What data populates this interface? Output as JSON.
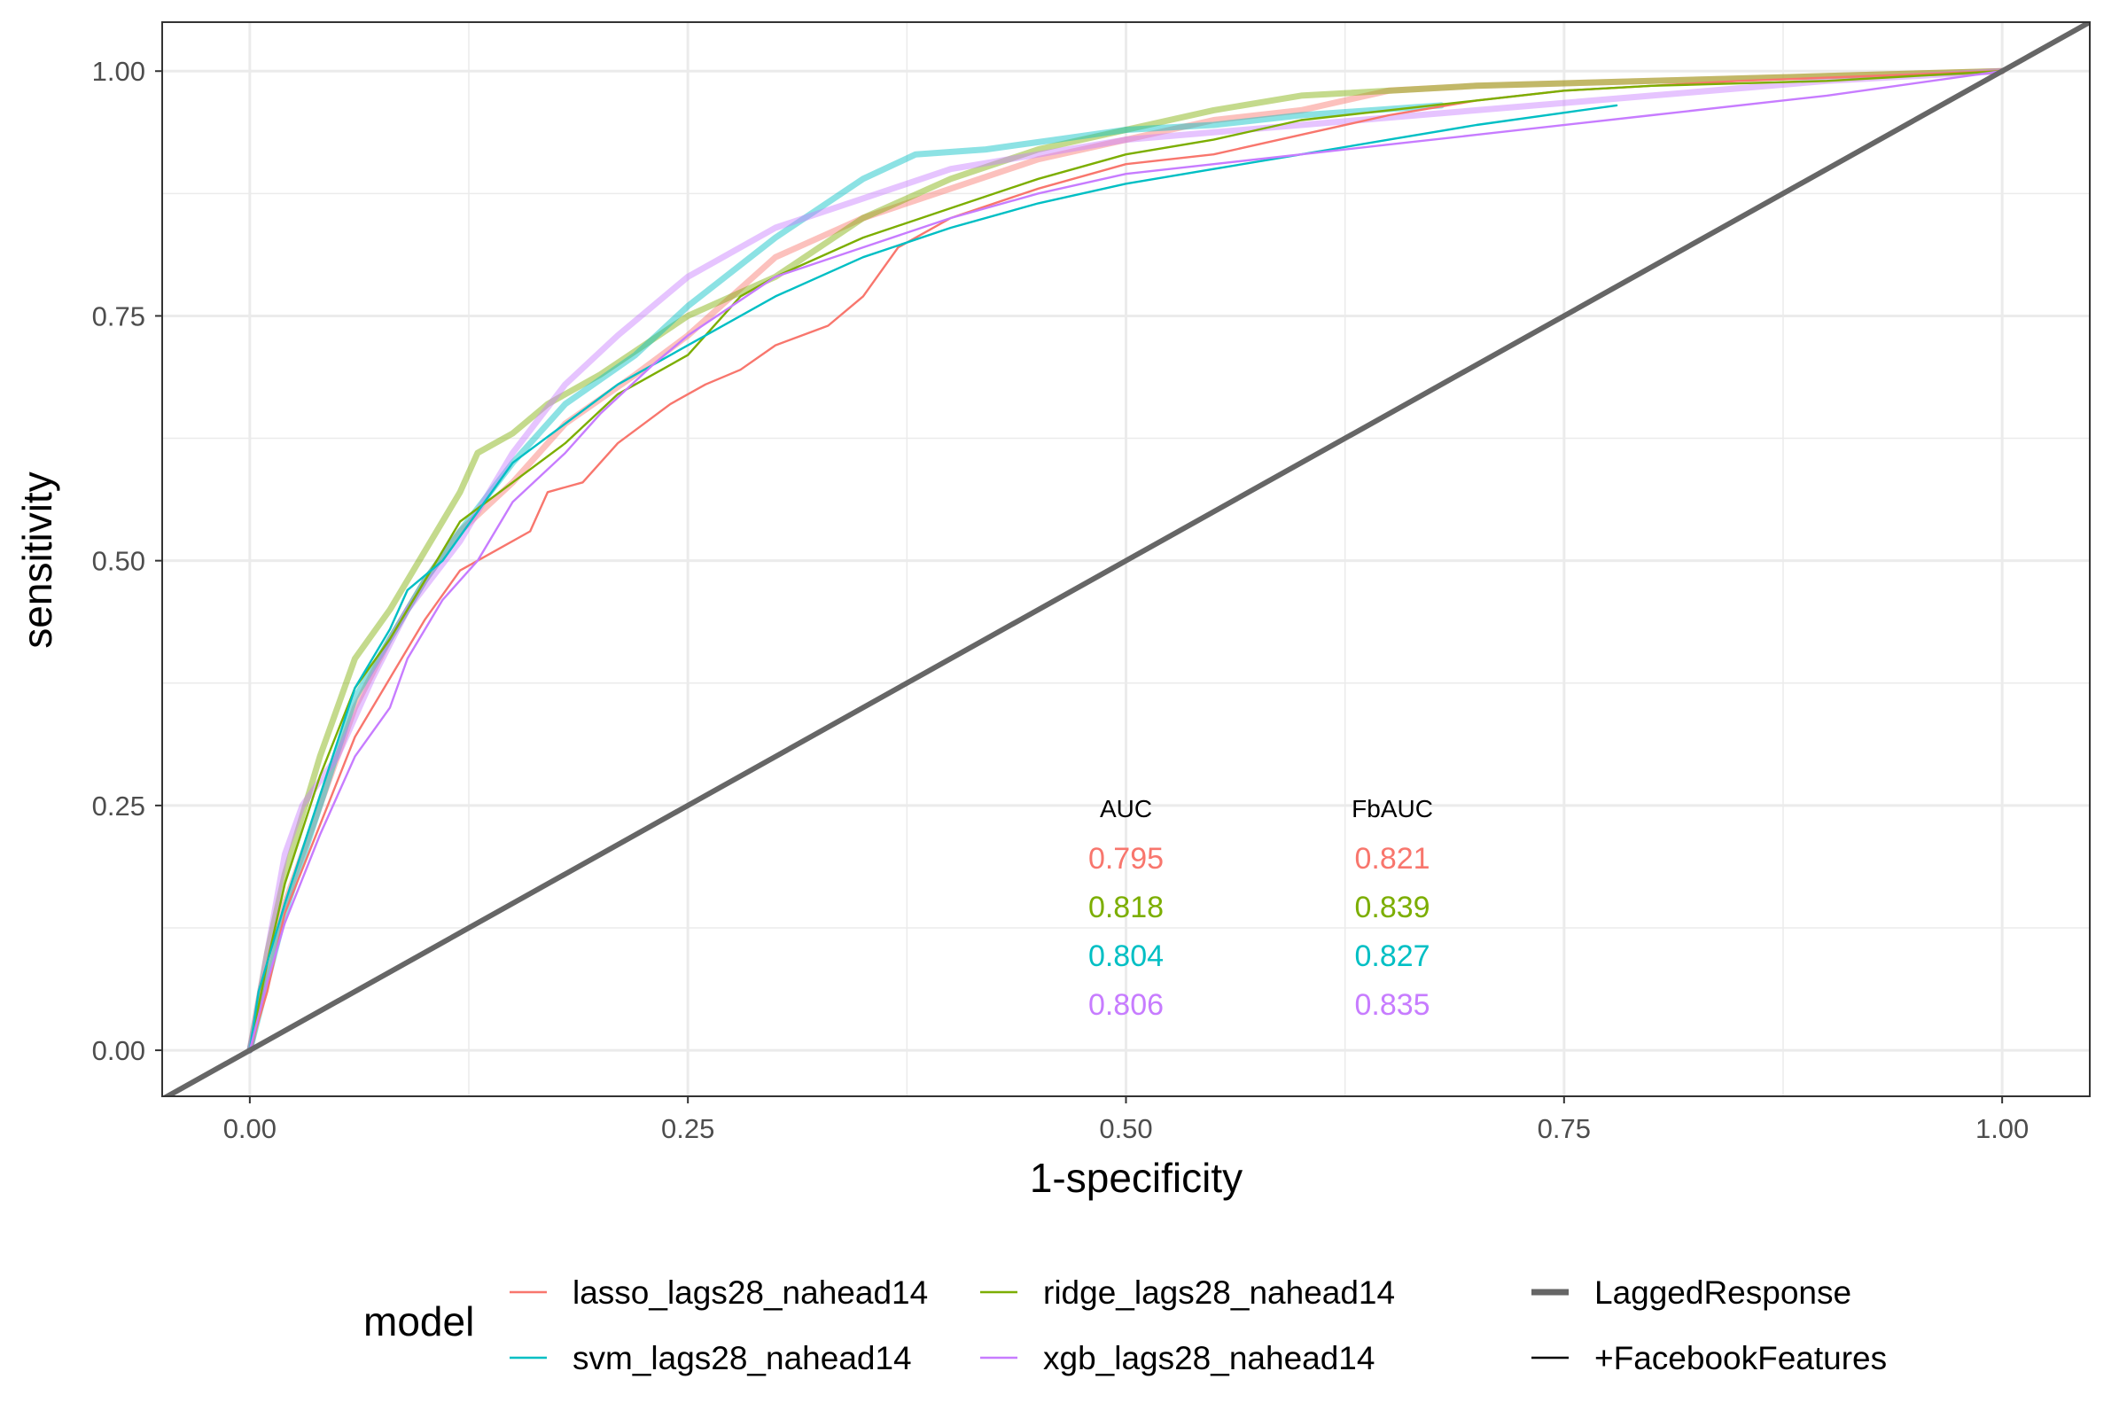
{
  "chart_data": {
    "type": "line",
    "title": "",
    "xlabel": "1-specificity",
    "ylabel": "sensitivity",
    "xlim": [
      -0.05,
      1.05
    ],
    "ylim": [
      -0.047,
      1.05
    ],
    "xticks": [
      "0.00",
      "0.25",
      "0.50",
      "0.75",
      "1.00"
    ],
    "yticks": [
      "0.00",
      "0.25",
      "0.50",
      "0.75",
      "1.00"
    ],
    "grid": true,
    "legend": {
      "position": "bottom",
      "title": "model",
      "color_entries": [
        {
          "name": "lasso_lags28_nahead14",
          "color": "#F8766D"
        },
        {
          "name": "ridge_lags28_nahead14",
          "color": "#7CAE00"
        },
        {
          "name": "svm_lags28_nahead14",
          "color": "#00BFC4"
        },
        {
          "name": "xgb_lags28_nahead14",
          "color": "#C77CFF"
        }
      ],
      "linetype_entries": [
        {
          "name": "LaggedResponse",
          "style": "thick"
        },
        {
          "name": "+FacebookFeatures",
          "style": "thin"
        }
      ]
    },
    "diagonal_color": "#666666",
    "auc_table": {
      "headers": [
        "AUC",
        "FbAUC"
      ],
      "rows": [
        {
          "model": "lasso_lags28_nahead14",
          "color": "#F8766D",
          "auc": "0.795",
          "fbauc": "0.821"
        },
        {
          "model": "ridge_lags28_nahead14",
          "color": "#7CAE00",
          "auc": "0.818",
          "fbauc": "0.839"
        },
        {
          "model": "svm_lags28_nahead14",
          "color": "#00BFC4",
          "auc": "0.804",
          "fbauc": "0.827"
        },
        {
          "model": "xgb_lags28_nahead14",
          "color": "#C77CFF",
          "auc": "0.806",
          "fbauc": "0.835"
        }
      ]
    },
    "series": [
      {
        "model": "lasso_lags28_nahead14",
        "variant": "LaggedResponse",
        "color": "#F8766D",
        "points": [
          [
            0,
            0
          ],
          [
            0.01,
            0.08
          ],
          [
            0.02,
            0.15
          ],
          [
            0.04,
            0.25
          ],
          [
            0.06,
            0.35
          ],
          [
            0.08,
            0.42
          ],
          [
            0.1,
            0.48
          ],
          [
            0.12,
            0.53
          ],
          [
            0.15,
            0.58
          ],
          [
            0.18,
            0.64
          ],
          [
            0.22,
            0.69
          ],
          [
            0.25,
            0.73
          ],
          [
            0.3,
            0.81
          ],
          [
            0.35,
            0.85
          ],
          [
            0.4,
            0.88
          ],
          [
            0.45,
            0.91
          ],
          [
            0.5,
            0.93
          ],
          [
            0.55,
            0.95
          ],
          [
            0.6,
            0.96
          ],
          [
            0.65,
            0.98
          ],
          [
            0.7,
            0.985
          ],
          [
            0.8,
            0.99
          ],
          [
            0.9,
            0.995
          ],
          [
            1,
            1
          ]
        ]
      },
      {
        "model": "ridge_lags28_nahead14",
        "variant": "LaggedResponse",
        "color": "#7CAE00",
        "points": [
          [
            0,
            0
          ],
          [
            0.01,
            0.1
          ],
          [
            0.02,
            0.18
          ],
          [
            0.04,
            0.3
          ],
          [
            0.06,
            0.4
          ],
          [
            0.08,
            0.45
          ],
          [
            0.1,
            0.51
          ],
          [
            0.12,
            0.57
          ],
          [
            0.13,
            0.61
          ],
          [
            0.15,
            0.63
          ],
          [
            0.17,
            0.66
          ],
          [
            0.2,
            0.69
          ],
          [
            0.25,
            0.75
          ],
          [
            0.3,
            0.79
          ],
          [
            0.35,
            0.85
          ],
          [
            0.4,
            0.89
          ],
          [
            0.45,
            0.92
          ],
          [
            0.5,
            0.94
          ],
          [
            0.55,
            0.96
          ],
          [
            0.6,
            0.975
          ],
          [
            0.7,
            0.985
          ],
          [
            0.8,
            0.99
          ],
          [
            0.9,
            0.995
          ],
          [
            1,
            1
          ]
        ]
      },
      {
        "model": "svm_lags28_nahead14",
        "variant": "LaggedResponse",
        "color": "#00BFC4",
        "points": [
          [
            0,
            0
          ],
          [
            0.01,
            0.07
          ],
          [
            0.02,
            0.14
          ],
          [
            0.04,
            0.25
          ],
          [
            0.06,
            0.36
          ],
          [
            0.08,
            0.42
          ],
          [
            0.1,
            0.48
          ],
          [
            0.12,
            0.53
          ],
          [
            0.15,
            0.6
          ],
          [
            0.18,
            0.66
          ],
          [
            0.22,
            0.71
          ],
          [
            0.25,
            0.76
          ],
          [
            0.3,
            0.83
          ],
          [
            0.35,
            0.89
          ],
          [
            0.38,
            0.915
          ],
          [
            0.42,
            0.92
          ],
          [
            0.46,
            0.93
          ],
          [
            0.5,
            0.94
          ],
          [
            0.55,
            0.945
          ],
          [
            0.6,
            0.955
          ],
          [
            0.68,
            0.965
          ]
        ]
      },
      {
        "model": "xgb_lags28_nahead14",
        "variant": "LaggedResponse",
        "color": "#C77CFF",
        "points": [
          [
            0,
            0
          ],
          [
            0.01,
            0.1
          ],
          [
            0.02,
            0.2
          ],
          [
            0.03,
            0.25
          ],
          [
            0.05,
            0.3
          ],
          [
            0.07,
            0.38
          ],
          [
            0.09,
            0.45
          ],
          [
            0.12,
            0.52
          ],
          [
            0.15,
            0.61
          ],
          [
            0.18,
            0.68
          ],
          [
            0.21,
            0.73
          ],
          [
            0.25,
            0.79
          ],
          [
            0.3,
            0.84
          ],
          [
            0.35,
            0.87
          ],
          [
            0.4,
            0.9
          ],
          [
            0.45,
            0.915
          ],
          [
            0.5,
            0.93
          ],
          [
            0.6,
            0.945
          ],
          [
            0.7,
            0.96
          ],
          [
            0.8,
            0.975
          ],
          [
            0.9,
            0.99
          ],
          [
            1,
            1
          ]
        ]
      },
      {
        "model": "lasso_lags28_nahead14",
        "variant": "+FacebookFeatures",
        "color": "#F8766D",
        "points": [
          [
            0,
            0
          ],
          [
            0.01,
            0.06
          ],
          [
            0.02,
            0.14
          ],
          [
            0.04,
            0.23
          ],
          [
            0.06,
            0.32
          ],
          [
            0.08,
            0.38
          ],
          [
            0.1,
            0.44
          ],
          [
            0.12,
            0.49
          ],
          [
            0.14,
            0.51
          ],
          [
            0.16,
            0.53
          ],
          [
            0.17,
            0.57
          ],
          [
            0.19,
            0.58
          ],
          [
            0.21,
            0.62
          ],
          [
            0.24,
            0.66
          ],
          [
            0.26,
            0.68
          ],
          [
            0.28,
            0.695
          ],
          [
            0.3,
            0.72
          ],
          [
            0.33,
            0.74
          ],
          [
            0.35,
            0.77
          ],
          [
            0.37,
            0.82
          ],
          [
            0.4,
            0.85
          ],
          [
            0.45,
            0.88
          ],
          [
            0.5,
            0.905
          ],
          [
            0.55,
            0.915
          ],
          [
            0.6,
            0.935
          ],
          [
            0.65,
            0.955
          ],
          [
            0.7,
            0.97
          ],
          [
            0.75,
            0.98
          ],
          [
            0.85,
            0.99
          ],
          [
            1,
            1
          ]
        ]
      },
      {
        "model": "ridge_lags28_nahead14",
        "variant": "+FacebookFeatures",
        "color": "#7CAE00",
        "points": [
          [
            0,
            0
          ],
          [
            0.01,
            0.09
          ],
          [
            0.02,
            0.17
          ],
          [
            0.04,
            0.28
          ],
          [
            0.06,
            0.37
          ],
          [
            0.08,
            0.42
          ],
          [
            0.1,
            0.48
          ],
          [
            0.12,
            0.54
          ],
          [
            0.15,
            0.58
          ],
          [
            0.18,
            0.62
          ],
          [
            0.21,
            0.67
          ],
          [
            0.25,
            0.71
          ],
          [
            0.28,
            0.77
          ],
          [
            0.3,
            0.79
          ],
          [
            0.35,
            0.83
          ],
          [
            0.4,
            0.86
          ],
          [
            0.45,
            0.89
          ],
          [
            0.5,
            0.915
          ],
          [
            0.55,
            0.93
          ],
          [
            0.6,
            0.95
          ],
          [
            0.65,
            0.96
          ],
          [
            0.7,
            0.97
          ],
          [
            0.75,
            0.98
          ],
          [
            0.8,
            0.985
          ],
          [
            0.9,
            0.99
          ],
          [
            1,
            1
          ]
        ]
      },
      {
        "model": "svm_lags28_nahead14",
        "variant": "+FacebookFeatures",
        "color": "#00BFC4",
        "points": [
          [
            0,
            0
          ],
          [
            0.005,
            0.06
          ],
          [
            0.02,
            0.15
          ],
          [
            0.04,
            0.26
          ],
          [
            0.06,
            0.37
          ],
          [
            0.08,
            0.43
          ],
          [
            0.09,
            0.47
          ],
          [
            0.11,
            0.5
          ],
          [
            0.13,
            0.55
          ],
          [
            0.15,
            0.6
          ],
          [
            0.18,
            0.64
          ],
          [
            0.21,
            0.68
          ],
          [
            0.25,
            0.72
          ],
          [
            0.3,
            0.77
          ],
          [
            0.35,
            0.81
          ],
          [
            0.4,
            0.84
          ],
          [
            0.45,
            0.865
          ],
          [
            0.5,
            0.885
          ],
          [
            0.55,
            0.9
          ],
          [
            0.6,
            0.915
          ],
          [
            0.65,
            0.93
          ],
          [
            0.7,
            0.945
          ],
          [
            0.78,
            0.965
          ]
        ]
      },
      {
        "model": "xgb_lags28_nahead14",
        "variant": "+FacebookFeatures",
        "color": "#C77CFF",
        "points": [
          [
            0,
            0
          ],
          [
            0.01,
            0.07
          ],
          [
            0.02,
            0.13
          ],
          [
            0.04,
            0.22
          ],
          [
            0.06,
            0.3
          ],
          [
            0.08,
            0.35
          ],
          [
            0.09,
            0.4
          ],
          [
            0.1,
            0.43
          ],
          [
            0.11,
            0.46
          ],
          [
            0.13,
            0.5
          ],
          [
            0.15,
            0.56
          ],
          [
            0.18,
            0.61
          ],
          [
            0.2,
            0.65
          ],
          [
            0.23,
            0.7
          ],
          [
            0.25,
            0.73
          ],
          [
            0.3,
            0.79
          ],
          [
            0.35,
            0.82
          ],
          [
            0.4,
            0.85
          ],
          [
            0.45,
            0.875
          ],
          [
            0.5,
            0.895
          ],
          [
            0.55,
            0.905
          ],
          [
            0.6,
            0.915
          ],
          [
            0.65,
            0.925
          ],
          [
            0.7,
            0.935
          ],
          [
            0.8,
            0.955
          ],
          [
            0.9,
            0.975
          ],
          [
            1,
            1
          ]
        ]
      }
    ]
  }
}
